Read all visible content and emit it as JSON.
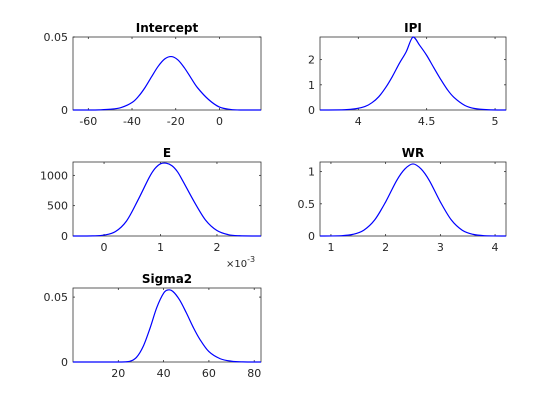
{
  "figure": {
    "curve_color": "#0000ff"
  },
  "chart_data": [
    {
      "type": "line",
      "title": "Intercept",
      "xlim": [
        -67,
        19
      ],
      "ylim": [
        0,
        0.05
      ],
      "xticks": [
        -60,
        -40,
        -20,
        0
      ],
      "xtick_labels": [
        "-60",
        "-40",
        "-20",
        "0"
      ],
      "yticks": [
        0,
        0.05
      ],
      "ytick_labels": [
        "0",
        "0.05"
      ],
      "x_multiplier": "",
      "x": [
        -67,
        -60,
        -55,
        -50,
        -45,
        -40,
        -37,
        -34,
        -31,
        -28,
        -25,
        -22,
        -19,
        -16,
        -13,
        -10,
        -5,
        0,
        5,
        10,
        19
      ],
      "y": [
        0,
        0,
        0.0001,
        0.0005,
        0.0017,
        0.0051,
        0.0094,
        0.0155,
        0.0229,
        0.03,
        0.035,
        0.0366,
        0.0343,
        0.0288,
        0.0219,
        0.0152,
        0.0072,
        0.002,
        0.0004,
        0,
        0
      ]
    },
    {
      "type": "line",
      "title": "IPI",
      "xlim": [
        3.72,
        5.08
      ],
      "ylim": [
        0,
        2.9
      ],
      "xticks": [
        4,
        4.5,
        5
      ],
      "xtick_labels": [
        "4",
        "4.5",
        "5"
      ],
      "yticks": [
        0,
        1,
        2
      ],
      "ytick_labels": [
        "0",
        "1",
        "2"
      ],
      "x_multiplier": "",
      "x": [
        3.72,
        3.9,
        3.98,
        4.05,
        4.1,
        4.15,
        4.2,
        4.25,
        4.3,
        4.35,
        4.4,
        4.45,
        4.5,
        4.55,
        4.6,
        4.65,
        4.7,
        4.78,
        4.85,
        4.95,
        5.08
      ],
      "y": [
        0,
        0.01,
        0.05,
        0.14,
        0.29,
        0.53,
        0.89,
        1.34,
        1.85,
        2.31,
        2.9,
        2.56,
        2.17,
        1.7,
        1.24,
        0.82,
        0.5,
        0.18,
        0.06,
        0.01,
        0
      ]
    },
    {
      "type": "line",
      "title": "E",
      "xlim": [
        -0.00055,
        0.00278
      ],
      "ylim": [
        0,
        1220
      ],
      "xticks": [
        0,
        0.001,
        0.002
      ],
      "xtick_labels": [
        "0",
        "1",
        "2"
      ],
      "yticks": [
        0,
        500,
        1000
      ],
      "ytick_labels": [
        "0",
        "500",
        "1000"
      ],
      "x_multiplier": "×10",
      "x_multiplier_exp": "-3",
      "x": [
        -0.00055,
        -0.0002,
        0,
        0.0002,
        0.0004,
        0.0006,
        0.0008,
        0.0009,
        0.001,
        0.0011,
        0.0012,
        0.0013,
        0.0014,
        0.0016,
        0.0018,
        0.002,
        0.0022,
        0.0024,
        0.00278
      ],
      "y": [
        0,
        2,
        15,
        72,
        250,
        590,
        965,
        1110,
        1190,
        1200,
        1160,
        1060,
        900,
        560,
        260,
        90,
        22,
        4,
        0
      ]
    },
    {
      "type": "line",
      "title": "WR",
      "xlim": [
        0.8,
        4.2
      ],
      "ylim": [
        0,
        1.15
      ],
      "xticks": [
        1,
        2,
        3,
        4
      ],
      "xtick_labels": [
        "1",
        "2",
        "3",
        "4"
      ],
      "yticks": [
        0,
        0.5,
        1
      ],
      "ytick_labels": [
        "0",
        "0.5",
        "1"
      ],
      "x_multiplier": "",
      "x": [
        0.8,
        1.2,
        1.4,
        1.6,
        1.8,
        2.0,
        2.2,
        2.35,
        2.5,
        2.65,
        2.8,
        3.0,
        3.2,
        3.4,
        3.6,
        3.8,
        4.2
      ],
      "y": [
        0,
        0.005,
        0.025,
        0.09,
        0.25,
        0.53,
        0.86,
        1.04,
        1.12,
        1.04,
        0.86,
        0.53,
        0.25,
        0.09,
        0.025,
        0.005,
        0
      ]
    },
    {
      "type": "line",
      "title": "Sigma2",
      "xlim": [
        0,
        83
      ],
      "ylim": [
        0,
        0.057
      ],
      "xticks": [
        20,
        40,
        60,
        80
      ],
      "xtick_labels": [
        "20",
        "40",
        "60",
        "80"
      ],
      "yticks": [
        0,
        0.05
      ],
      "ytick_labels": [
        "0",
        "0.05"
      ],
      "x_multiplier": "",
      "x": [
        0,
        20,
        25,
        28,
        31,
        34,
        37,
        40,
        42,
        44,
        47,
        50,
        53,
        56,
        60,
        65,
        70,
        75,
        83
      ],
      "y": [
        0,
        0,
        0.0005,
        0.0035,
        0.012,
        0.026,
        0.042,
        0.053,
        0.0555,
        0.0545,
        0.048,
        0.038,
        0.027,
        0.0175,
        0.008,
        0.0025,
        0.0006,
        0.0001,
        0
      ]
    }
  ]
}
